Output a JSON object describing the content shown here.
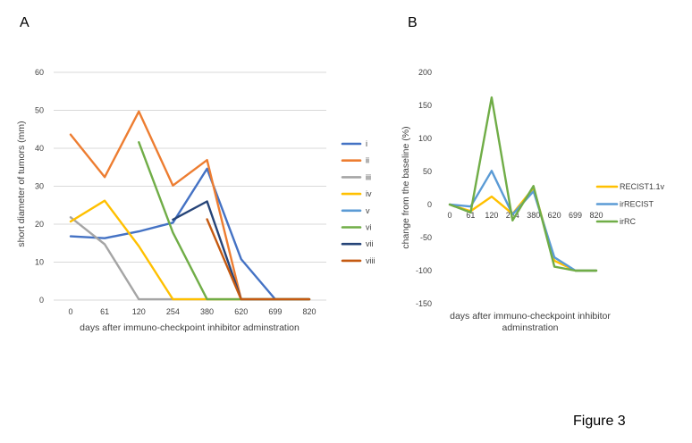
{
  "figure": {
    "caption": "Figure 3"
  },
  "chart_data": [
    {
      "panel": "A",
      "type": "line",
      "categories": [
        "0",
        "61",
        "120",
        "254",
        "380",
        "620",
        "699",
        "820"
      ],
      "xlabel": "days after immuno-checkpoint inhibitor adminstration",
      "ylabel": "short diameter of tumors (mm)",
      "ylim": [
        0,
        60
      ],
      "yticks": [
        0,
        10,
        20,
        30,
        40,
        50,
        60
      ],
      "grid": true,
      "legend_position": "right",
      "series": [
        {
          "name": "i",
          "color": "#4472c4",
          "values": [
            16.8,
            16.3,
            18.1,
            20.4,
            34.6,
            10.8,
            0.2,
            0.2
          ]
        },
        {
          "name": "ii",
          "color": "#ed7d31",
          "values": [
            43.6,
            32.4,
            49.7,
            30.2,
            36.9,
            0.2,
            0.2,
            0.2
          ]
        },
        {
          "name": "iii",
          "color": "#a5a5a5",
          "values": [
            21.8,
            14.7,
            0.2,
            0.2,
            0.2,
            0.2,
            0.2,
            0.2
          ]
        },
        {
          "name": "iv",
          "color": "#ffc000",
          "values": [
            20.7,
            26.2,
            14.2,
            0.2,
            0.2,
            0.2,
            0.2,
            0.2
          ]
        },
        {
          "name": "v",
          "color": "#5b9bd5",
          "values": [
            null,
            null,
            null,
            null,
            null,
            null,
            null,
            null
          ]
        },
        {
          "name": "vi",
          "color": "#70ad47",
          "values": [
            null,
            null,
            41.6,
            17.8,
            0.2,
            0.2,
            0.2,
            0.2
          ]
        },
        {
          "name": "vii",
          "color": "#264478",
          "values": [
            null,
            null,
            null,
            21.2,
            26.0,
            0.2,
            0.2,
            0.2
          ]
        },
        {
          "name": "viii",
          "color": "#c55a11",
          "values": [
            null,
            null,
            null,
            null,
            21.3,
            0.2,
            0.2,
            0.2
          ]
        }
      ]
    },
    {
      "panel": "B",
      "type": "line",
      "categories": [
        "0",
        "61",
        "120",
        "254",
        "380",
        "620",
        "699",
        "820"
      ],
      "xlabel": "days after immuno-checkpoint inhibitor adminstration",
      "ylabel": "change from the baseline (%)",
      "ylim": [
        -150,
        200
      ],
      "yticks": [
        -150,
        -100,
        -50,
        0,
        50,
        100,
        150,
        200
      ],
      "grid": false,
      "legend_position": "right",
      "series": [
        {
          "name": "RECIST1.1v",
          "color": "#ffc000",
          "values": [
            0,
            -10,
            12,
            -14,
            25,
            -85,
            -100,
            -100
          ]
        },
        {
          "name": "irRECIST",
          "color": "#5b9bd5",
          "values": [
            0,
            -3,
            51,
            -15,
            20,
            -80,
            -100,
            -100
          ]
        },
        {
          "name": "irRC",
          "color": "#70ad47",
          "values": [
            0,
            -12,
            162,
            -24,
            28,
            -94,
            -100,
            -100
          ]
        }
      ]
    }
  ]
}
